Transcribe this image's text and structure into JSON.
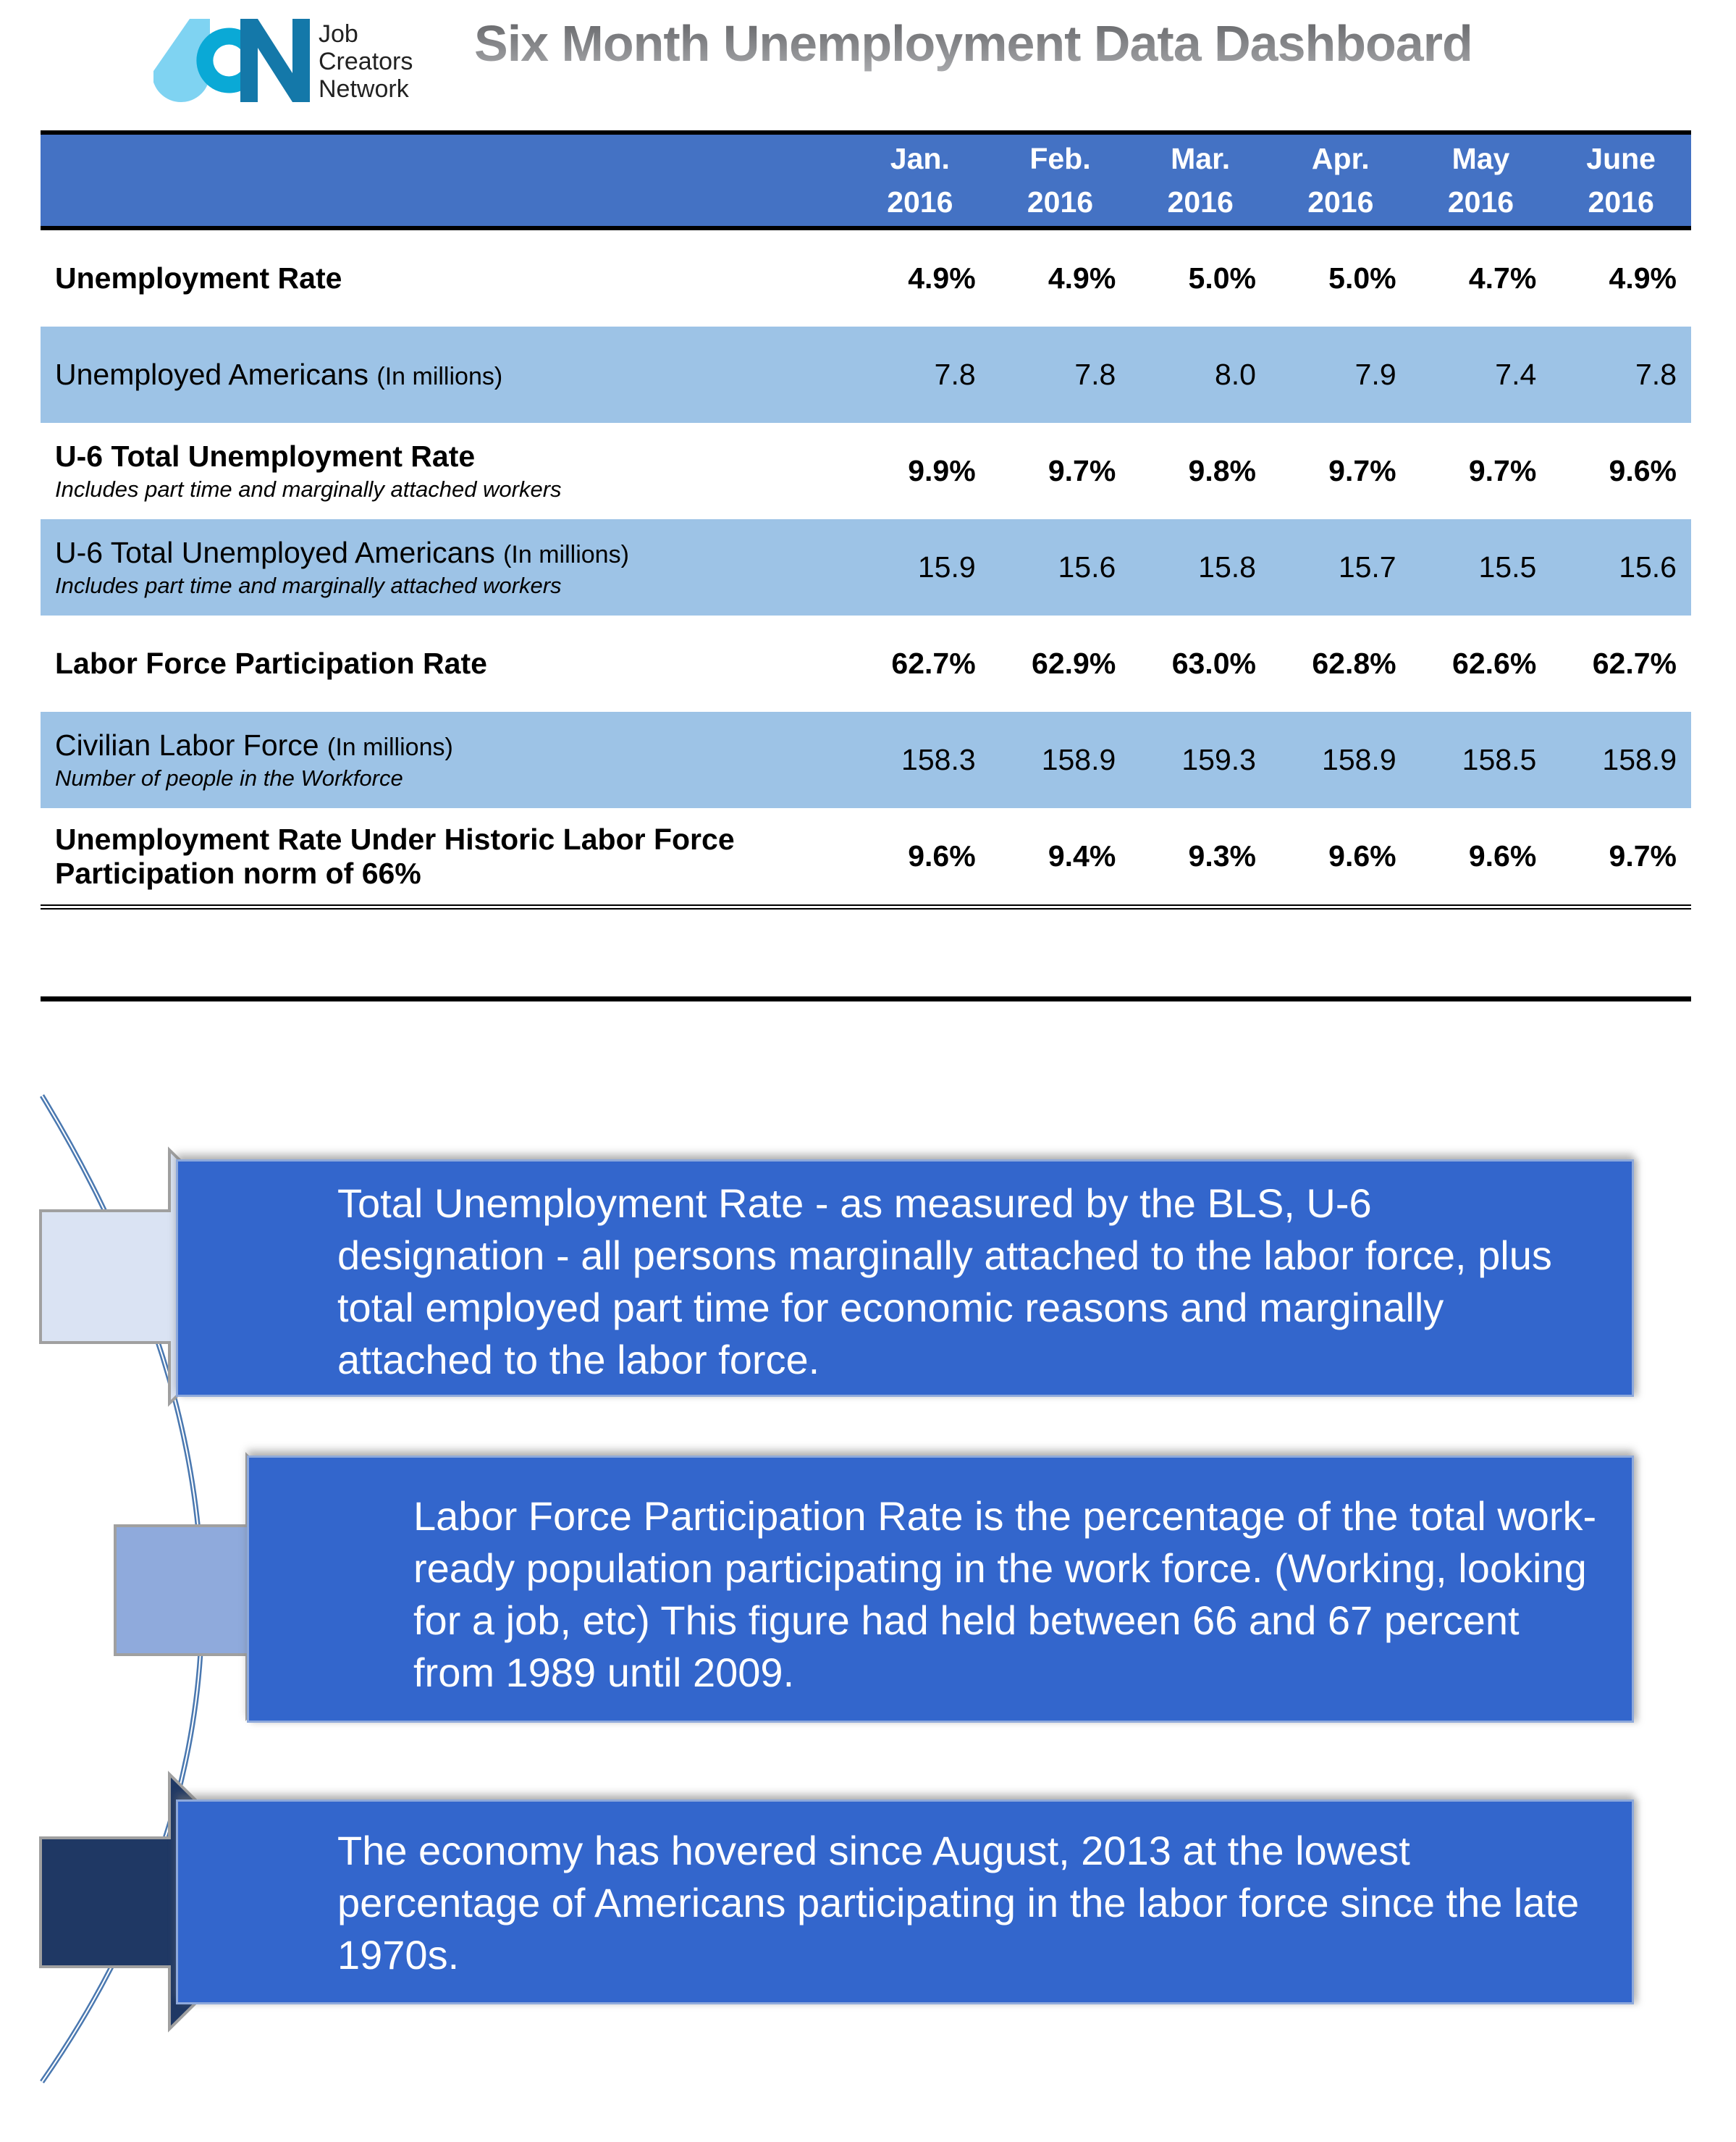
{
  "header": {
    "logo": {
      "letters": "JCN",
      "line1": "Job",
      "line2": "Creators",
      "line3": "Network"
    },
    "title": "Six Month Unemployment Data Dashboard"
  },
  "table": {
    "columns": [
      {
        "month": "Jan.",
        "year": "2016"
      },
      {
        "month": "Feb.",
        "year": "2016"
      },
      {
        "month": "Mar.",
        "year": "2016"
      },
      {
        "month": "Apr.",
        "year": "2016"
      },
      {
        "month": "May",
        "year": "2016"
      },
      {
        "month": "June",
        "year": "2016"
      }
    ],
    "rows": [
      {
        "label": "Unemployment Rate",
        "unit": "",
        "note": "",
        "values": [
          "4.9%",
          "4.9%",
          "5.0%",
          "5.0%",
          "4.7%",
          "4.9%"
        ]
      },
      {
        "label": "Unemployed Americans ",
        "unit": "(In millions)",
        "note": "",
        "values": [
          "7.8",
          "7.8",
          "8.0",
          "7.9",
          "7.4",
          "7.8"
        ]
      },
      {
        "label": "U-6 Total Unemployment Rate",
        "unit": "",
        "note": "Includes part time and marginally attached workers",
        "values": [
          "9.9%",
          "9.7%",
          "9.8%",
          "9.7%",
          "9.7%",
          "9.6%"
        ]
      },
      {
        "label": "U-6 Total Unemployed Americans ",
        "unit": "(In millions)",
        "note": "Includes part time and marginally attached workers",
        "values": [
          "15.9",
          "15.6",
          "15.8",
          "15.7",
          "15.5",
          "15.6"
        ]
      },
      {
        "label": "Labor Force Participation Rate",
        "unit": "",
        "note": "",
        "values": [
          "62.7%",
          "62.9%",
          "63.0%",
          "62.8%",
          "62.6%",
          "62.7%"
        ]
      },
      {
        "label": "Civilian Labor Force ",
        "unit": "(In millions)",
        "note": "Number of people in the Workforce",
        "values": [
          "158.3",
          "158.9",
          "159.3",
          "158.9",
          "158.5",
          "158.9"
        ]
      },
      {
        "label": "Unemployment Rate Under Historic Labor Force Participation norm of 66%",
        "unit": "",
        "note": "",
        "values": [
          "9.6%",
          "9.4%",
          "9.3%",
          "9.6%",
          "9.6%",
          "9.7%"
        ]
      }
    ]
  },
  "notes": [
    "Total Unemployment Rate - as measured by the BLS, U-6 designation - all persons marginally attached to the labor force, plus total employed part time for economic reasons and marginally attached to the labor force.",
    "Labor Force Participation Rate is the percentage of the total work-ready population participating in the work force. (Working, looking for a job, etc) This figure had held between 66 and 67 percent from 1989 until 2009.",
    "The economy has hovered since August, 2013 at the lowest percentage of Americans participating in the labor force since the late 1970s."
  ],
  "colors": {
    "header_blue": "#4472c4",
    "row_blue": "#9dc3e6",
    "box_blue": "#3366cc",
    "arrow1": "#dae3f3",
    "arrow2": "#8faadc",
    "arrow3": "#1f3864"
  }
}
